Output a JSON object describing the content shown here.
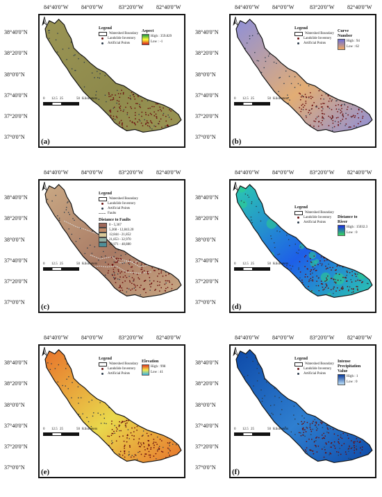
{
  "axis": {
    "lon_labels": [
      "84°40'0\"W",
      "84°0'0\"W",
      "83°20'0\"W",
      "82°40'0\"W"
    ],
    "lat_labels": [
      "38°40'0\"N",
      "38°20'0\"N",
      "38°0'0\"N",
      "37°40'0\"N",
      "37°20'0\"N",
      "37°0'0\"N"
    ]
  },
  "scalebar": {
    "ticks": [
      "0",
      "12.5",
      "25",
      "50"
    ],
    "unit": "Kilometers"
  },
  "legend_common": {
    "title": "Legend",
    "watershed": "Watershed Boundary",
    "landslide": "Landslide Inventory",
    "artificial": "Artificial Points",
    "faults": "Faults"
  },
  "panels": [
    {
      "tag": "(a)",
      "layer": "Aspect",
      "high": "High : 359.829",
      "low": "Low : -1",
      "ramp": [
        "#1a9641",
        "#ffff33",
        "#d7191c"
      ],
      "fill": "#8e8a4c",
      "fill2": "#9a9454"
    },
    {
      "tag": "(b)",
      "layer": "Curve Number",
      "high": "High : 94",
      "low": "Low : 62",
      "ramp": [
        "#6b6fd8",
        "#f0a860"
      ],
      "fill": "#e2ad74",
      "fill2": "#8f90d8"
    },
    {
      "tag": "(c)",
      "layer": "Distance to Faults",
      "classes": [
        {
          "label": "0 - 5,367",
          "color": "#a0685a"
        },
        {
          "label": "5,368 - 12,843.20",
          "color": "#c08a68"
        },
        {
          "label": "12,844 - 21,852",
          "color": "#d8c898"
        },
        {
          "label": "21,853 - 32,970",
          "color": "#8fb0a4"
        },
        {
          "label": "32,971 - 48,880",
          "color": "#4f8f98"
        }
      ],
      "fill": "#a87a64",
      "fill2": "#c9a884"
    },
    {
      "tag": "(d)",
      "layer": "Distance to River",
      "high": "High : 15032.3",
      "low": "Low : 0",
      "ramp": [
        "#1a2ce0",
        "#38d860"
      ],
      "fill": "#1e5fe8",
      "fill2": "#2bc8b0"
    },
    {
      "tag": "(e)",
      "layer": "Elevation",
      "high": "High : 998",
      "low": "Low : 41",
      "ramp": [
        "#e23a20",
        "#f6e84a",
        "#3ab8e8"
      ],
      "fill": "#e9d84c",
      "fill2": "#e8742c"
    },
    {
      "tag": "(f)",
      "layer": "Intense Precipitation",
      "layer_sub": "Value",
      "high": "High : 1",
      "low": "Low : 0",
      "ramp": [
        "#0a3a9a",
        "#bfe2f8"
      ],
      "fill": "#2f7fd0",
      "fill2": "#0e4aa8"
    }
  ],
  "colors": {
    "landslide": "#6a0d0d",
    "artificial": "#2b3a4a",
    "boundary": "#111111",
    "fault_line": "#d8d8d8"
  }
}
